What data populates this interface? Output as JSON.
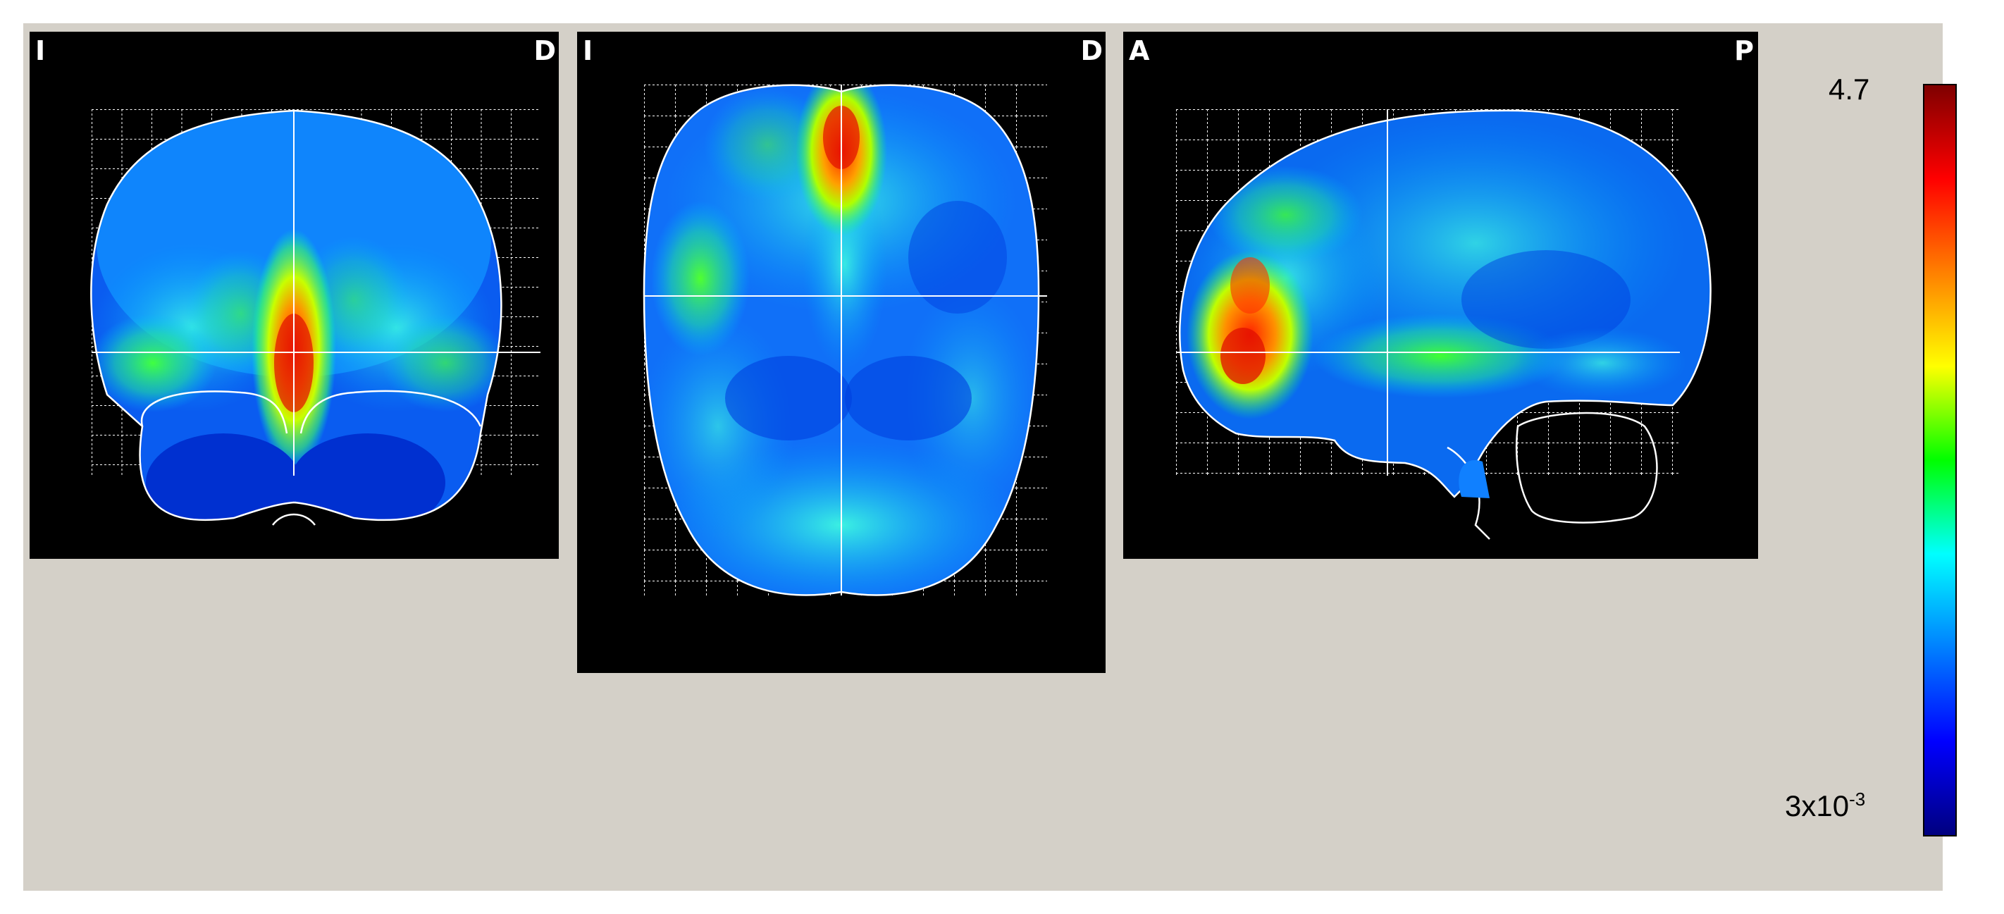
{
  "panels": {
    "coronal": {
      "left_label": "I",
      "right_label": "D"
    },
    "axial": {
      "left_label": "I",
      "right_label": "D"
    },
    "sagittal": {
      "left_label": "A",
      "right_label": "P"
    }
  },
  "colorbar": {
    "max_label": "4.7",
    "min_base": "3x10",
    "min_exponent": "-3",
    "gradient": [
      "#00007f",
      "#0000ff",
      "#0080ff",
      "#00ffff",
      "#00ff00",
      "#ffff00",
      "#ff8000",
      "#ff0000",
      "#7f0000"
    ]
  },
  "colors": {
    "background": "#d4d0c8",
    "panel": "#000000",
    "outline": "#ffffff"
  }
}
